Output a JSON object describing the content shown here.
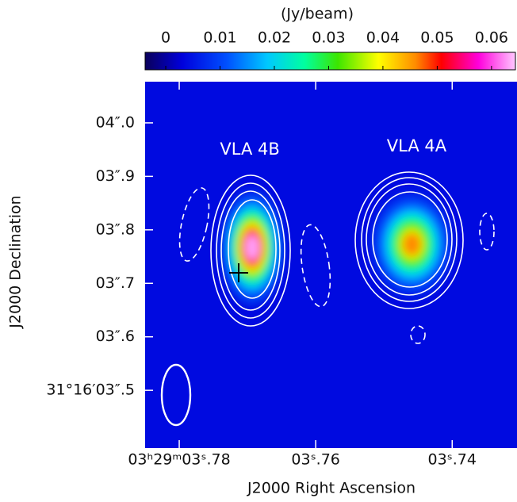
{
  "chart_data": {
    "type": "image",
    "colorbar_label": "(Jy/beam)",
    "x_label": "J2000 Right Ascension",
    "y_label": "J2000 Declination",
    "clim": [
      -0.0038,
      0.0644
    ],
    "cticks": [
      0,
      0.01,
      0.02,
      0.03,
      0.04,
      0.05,
      0.06
    ],
    "xlim": [
      3.785,
      3.7305
    ],
    "xticks": [
      {
        "value": 3.78,
        "label": "03ʰ29ᵐ03ˢ.78"
      },
      {
        "value": 3.76,
        "label": "03ˢ.76"
      },
      {
        "value": 3.74,
        "label": "03ˢ.74"
      }
    ],
    "ylim": [
      3.392,
      4.077
    ],
    "yticks": [
      {
        "value": 4.0,
        "label": "04″.0"
      },
      {
        "value": 3.9,
        "label": "03″.9"
      },
      {
        "value": 3.8,
        "label": "03″.8"
      },
      {
        "value": 3.7,
        "label": "03″.7"
      },
      {
        "value": 3.6,
        "label": "03″.6"
      },
      {
        "value": 3.5,
        "label": "31°16′03″.5"
      }
    ],
    "background": 0.004,
    "sources": [
      {
        "name": "VLA 4B",
        "ra": 3.7693,
        "dec": 3.767,
        "peak": 0.063
      },
      {
        "name": "VLA 4A",
        "ra": 3.7459,
        "dec": 3.773,
        "peak": 0.046
      }
    ]
  }
}
